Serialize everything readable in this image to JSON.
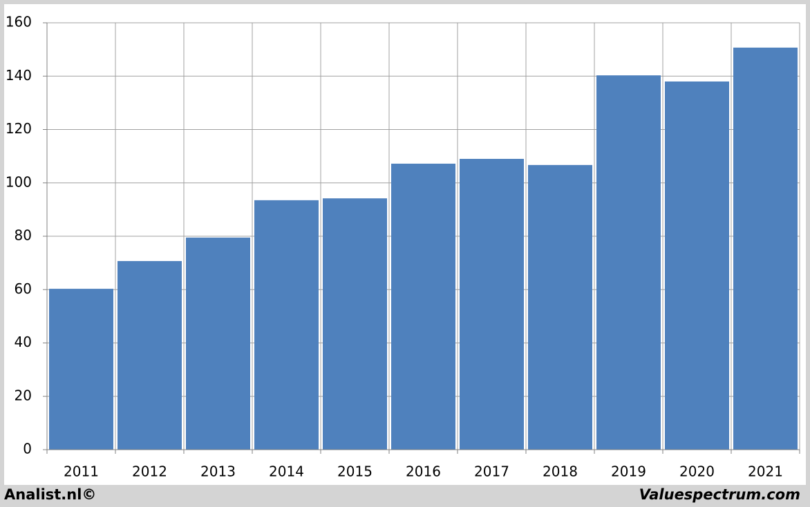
{
  "chart_data": {
    "type": "bar",
    "categories": [
      "2011",
      "2012",
      "2013",
      "2014",
      "2015",
      "2016",
      "2017",
      "2018",
      "2019",
      "2020",
      "2021"
    ],
    "values": [
      60.3,
      70.7,
      79.5,
      93.5,
      94.2,
      107.2,
      109,
      106.7,
      140.3,
      138,
      150.7
    ],
    "color": "#4f81bd",
    "ylim": [
      0,
      160
    ],
    "yticks": [
      0,
      20,
      40,
      60,
      80,
      100,
      120,
      140,
      160
    ],
    "grid": true
  },
  "footer": {
    "left": "Analist.nl©",
    "right": "Valuespectrum.com"
  }
}
